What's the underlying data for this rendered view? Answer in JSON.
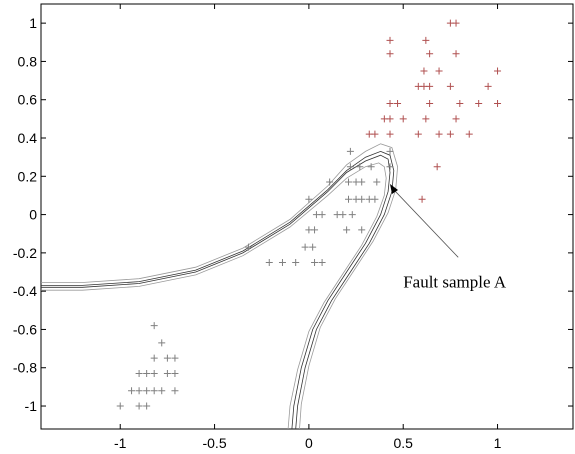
{
  "chart_data": {
    "type": "scatter",
    "title": "",
    "xlabel": "",
    "ylabel": "",
    "xlim": [
      -1.42,
      1.4
    ],
    "ylim": [
      -1.12,
      1.1
    ],
    "x_ticks": [
      -1,
      -0.5,
      0,
      0.5,
      1
    ],
    "x_tick_labels": [
      "-1",
      "-0.5",
      "0",
      "0.5",
      "1"
    ],
    "y_ticks": [
      1,
      0.8,
      0.6,
      0.4,
      0.2,
      0,
      -0.2,
      -0.4,
      -0.6,
      -0.8,
      -1
    ],
    "y_tick_labels": [
      "1",
      "0.8",
      "0.6",
      "0.4",
      "0.2",
      "0",
      "-0.2",
      "-0.4",
      "-0.6",
      "-0.8",
      "-1"
    ],
    "grid": false,
    "series": [
      {
        "marker": "+",
        "color": "#b05050",
        "points": [
          [
            0.75,
            1.0
          ],
          [
            0.78,
            1.0
          ],
          [
            0.43,
            0.91
          ],
          [
            0.62,
            0.91
          ],
          [
            0.43,
            0.84
          ],
          [
            0.64,
            0.84
          ],
          [
            0.78,
            0.84
          ],
          [
            0.61,
            0.75
          ],
          [
            0.69,
            0.75
          ],
          [
            1.0,
            0.75
          ],
          [
            0.58,
            0.67
          ],
          [
            0.61,
            0.67
          ],
          [
            0.64,
            0.67
          ],
          [
            0.75,
            0.67
          ],
          [
            0.95,
            0.67
          ],
          [
            0.43,
            0.58
          ],
          [
            0.47,
            0.58
          ],
          [
            0.64,
            0.58
          ],
          [
            0.8,
            0.58
          ],
          [
            0.9,
            0.58
          ],
          [
            1.0,
            0.58
          ],
          [
            0.4,
            0.5
          ],
          [
            0.43,
            0.5
          ],
          [
            0.5,
            0.5
          ],
          [
            0.62,
            0.5
          ],
          [
            0.78,
            0.5
          ],
          [
            0.32,
            0.42
          ],
          [
            0.35,
            0.42
          ],
          [
            0.43,
            0.42
          ],
          [
            0.58,
            0.42
          ],
          [
            0.69,
            0.42
          ],
          [
            0.75,
            0.42
          ],
          [
            0.85,
            0.42
          ],
          [
            0.68,
            0.25
          ],
          [
            0.6,
            0.08
          ]
        ]
      },
      {
        "marker": "+",
        "color": "#808080",
        "points": [
          [
            0.22,
            0.33
          ],
          [
            0.43,
            0.33
          ],
          [
            0.22,
            0.25
          ],
          [
            0.27,
            0.25
          ],
          [
            0.33,
            0.25
          ],
          [
            0.43,
            0.25
          ],
          [
            0.11,
            0.17
          ],
          [
            0.21,
            0.17
          ],
          [
            0.25,
            0.17
          ],
          [
            0.28,
            0.17
          ],
          [
            0.36,
            0.17
          ],
          [
            0.0,
            0.08
          ],
          [
            0.21,
            0.08
          ],
          [
            0.25,
            0.08
          ],
          [
            0.28,
            0.08
          ],
          [
            0.32,
            0.08
          ],
          [
            0.35,
            0.08
          ],
          [
            0.04,
            0.0
          ],
          [
            0.07,
            0.0
          ],
          [
            0.15,
            0.0
          ],
          [
            0.18,
            0.0
          ],
          [
            0.23,
            0.0
          ],
          [
            0.0,
            -0.08
          ],
          [
            0.03,
            -0.08
          ],
          [
            0.2,
            -0.08
          ],
          [
            0.28,
            -0.08
          ],
          [
            -0.02,
            -0.17
          ],
          [
            0.02,
            -0.17
          ],
          [
            -0.32,
            -0.17
          ],
          [
            -0.21,
            -0.25
          ],
          [
            -0.14,
            -0.25
          ],
          [
            -0.07,
            -0.25
          ],
          [
            0.03,
            -0.25
          ],
          [
            0.07,
            -0.25
          ],
          [
            -0.82,
            -0.58
          ],
          [
            -0.78,
            -0.67
          ],
          [
            -0.82,
            -0.75
          ],
          [
            -0.75,
            -0.75
          ],
          [
            -0.71,
            -0.75
          ],
          [
            -0.9,
            -0.83
          ],
          [
            -0.86,
            -0.83
          ],
          [
            -0.82,
            -0.83
          ],
          [
            -0.75,
            -0.83
          ],
          [
            -0.71,
            -0.83
          ],
          [
            -0.94,
            -0.92
          ],
          [
            -0.9,
            -0.92
          ],
          [
            -0.86,
            -0.92
          ],
          [
            -0.82,
            -0.92
          ],
          [
            -0.78,
            -0.92
          ],
          [
            -0.71,
            -0.92
          ],
          [
            -1.0,
            -1.0
          ],
          [
            -0.9,
            -1.0
          ],
          [
            -0.86,
            -1.0
          ]
        ]
      }
    ],
    "boundaries": [
      {
        "color": "#333333",
        "points": [
          [
            -1.42,
            -0.38
          ],
          [
            -1.2,
            -0.38
          ],
          [
            -0.9,
            -0.36
          ],
          [
            -0.6,
            -0.3
          ],
          [
            -0.35,
            -0.2
          ],
          [
            -0.1,
            -0.05
          ],
          [
            0.1,
            0.12
          ],
          [
            0.2,
            0.22
          ],
          [
            0.3,
            0.28
          ],
          [
            0.38,
            0.31
          ],
          [
            0.42,
            0.29
          ],
          [
            0.43,
            0.22
          ],
          [
            0.42,
            0.12
          ],
          [
            0.38,
            0.0
          ],
          [
            0.3,
            -0.15
          ],
          [
            0.2,
            -0.3
          ],
          [
            0.1,
            -0.45
          ],
          [
            0.02,
            -0.6
          ],
          [
            -0.04,
            -0.8
          ],
          [
            -0.08,
            -1.0
          ],
          [
            -0.09,
            -1.12
          ]
        ]
      },
      {
        "color": "#333333",
        "points": [
          [
            -1.42,
            -0.37
          ],
          [
            -1.2,
            -0.37
          ],
          [
            -0.9,
            -0.35
          ],
          [
            -0.6,
            -0.29
          ],
          [
            -0.35,
            -0.19
          ],
          [
            -0.1,
            -0.04
          ],
          [
            0.1,
            0.13
          ],
          [
            0.2,
            0.23
          ],
          [
            0.3,
            0.3
          ],
          [
            0.38,
            0.33
          ],
          [
            0.43,
            0.31
          ],
          [
            0.45,
            0.23
          ],
          [
            0.44,
            0.12
          ],
          [
            0.4,
            0.0
          ],
          [
            0.32,
            -0.15
          ],
          [
            0.22,
            -0.3
          ],
          [
            0.12,
            -0.45
          ],
          [
            0.04,
            -0.6
          ],
          [
            -0.02,
            -0.8
          ],
          [
            -0.06,
            -1.0
          ],
          [
            -0.07,
            -1.12
          ]
        ]
      },
      {
        "color": "#9a9a9a",
        "points": [
          [
            -1.42,
            -0.395
          ],
          [
            -1.2,
            -0.395
          ],
          [
            -0.9,
            -0.375
          ],
          [
            -0.6,
            -0.315
          ],
          [
            -0.35,
            -0.215
          ],
          [
            -0.1,
            -0.065
          ],
          [
            0.1,
            0.1
          ],
          [
            0.2,
            0.19
          ],
          [
            0.3,
            0.25
          ],
          [
            0.37,
            0.27
          ],
          [
            0.4,
            0.25
          ],
          [
            0.41,
            0.19
          ],
          [
            0.4,
            0.1
          ],
          [
            0.36,
            -0.01
          ],
          [
            0.28,
            -0.16
          ],
          [
            0.18,
            -0.31
          ],
          [
            0.08,
            -0.46
          ],
          [
            0.0,
            -0.61
          ],
          [
            -0.06,
            -0.81
          ],
          [
            -0.1,
            -1.0
          ],
          [
            -0.11,
            -1.12
          ]
        ]
      },
      {
        "color": "#9a9a9a",
        "points": [
          [
            -1.42,
            -0.355
          ],
          [
            -1.2,
            -0.355
          ],
          [
            -0.9,
            -0.335
          ],
          [
            -0.6,
            -0.275
          ],
          [
            -0.35,
            -0.175
          ],
          [
            -0.1,
            -0.025
          ],
          [
            0.1,
            0.15
          ],
          [
            0.2,
            0.26
          ],
          [
            0.3,
            0.33
          ],
          [
            0.38,
            0.37
          ],
          [
            0.44,
            0.35
          ],
          [
            0.47,
            0.25
          ],
          [
            0.46,
            0.13
          ],
          [
            0.42,
            0.01
          ],
          [
            0.34,
            -0.14
          ],
          [
            0.24,
            -0.29
          ],
          [
            0.14,
            -0.44
          ],
          [
            0.06,
            -0.59
          ],
          [
            0.0,
            -0.79
          ],
          [
            -0.04,
            -0.99
          ],
          [
            -0.05,
            -1.12
          ]
        ]
      }
    ],
    "annotation": {
      "text": "Fault sample A",
      "target": [
        0.43,
        0.16
      ],
      "text_anchor": [
        0.5,
        -0.38
      ]
    }
  }
}
